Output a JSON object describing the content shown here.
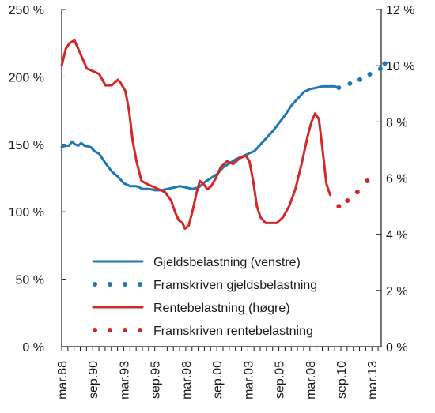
{
  "chart_data": {
    "type": "line",
    "colors": {
      "gjeld": "#1f77b4",
      "rente": "#d62728",
      "axis": "#1a1a1a"
    },
    "x_tick_labels": [
      "mar.88",
      "sep.90",
      "mar.93",
      "sep.95",
      "mar.98",
      "sep.00",
      "mar.03",
      "sep.05",
      "mar.08",
      "sep.10",
      "mar.13"
    ],
    "x_tick_dates": [
      1988.17,
      1990.67,
      1993.17,
      1995.67,
      1998.17,
      2000.67,
      2003.17,
      2005.67,
      2008.17,
      2010.67,
      2013.17
    ],
    "xlim": [
      1988.17,
      2013.92
    ],
    "y_left": {
      "lim": [
        0,
        250
      ],
      "ticks": [
        0,
        50,
        100,
        150,
        200,
        250
      ],
      "tick_labels": [
        "0 %",
        "50 %",
        "100 %",
        "150 %",
        "200 %",
        "250 %"
      ]
    },
    "y_right": {
      "lim": [
        0,
        12
      ],
      "ticks": [
        0,
        2,
        4,
        6,
        8,
        10,
        12
      ],
      "tick_labels": [
        "0 %",
        "2 %",
        "4 %",
        "6 %",
        "8 %",
        "10 %",
        "12 %"
      ]
    },
    "grid": false,
    "legend_position": "bottom-center",
    "series": [
      {
        "name": "Gjeldsbelastning (venstre)",
        "axis": "left",
        "style": "solid",
        "color_key": "gjeld",
        "points": [
          [
            1988.17,
            148
          ],
          [
            1988.5,
            149
          ],
          [
            1988.75,
            149
          ],
          [
            1989.0,
            152
          ],
          [
            1989.25,
            150
          ],
          [
            1989.5,
            149
          ],
          [
            1989.75,
            151
          ],
          [
            1990.0,
            149
          ],
          [
            1990.5,
            148
          ],
          [
            1990.8,
            145
          ],
          [
            1991.2,
            143
          ],
          [
            1991.7,
            136
          ],
          [
            1992.2,
            130
          ],
          [
            1992.7,
            126
          ],
          [
            1993.2,
            121
          ],
          [
            1993.7,
            119
          ],
          [
            1994.2,
            119
          ],
          [
            1994.7,
            117
          ],
          [
            1995.2,
            117
          ],
          [
            1995.7,
            116
          ],
          [
            1996.2,
            116
          ],
          [
            1996.7,
            117
          ],
          [
            1997.2,
            118
          ],
          [
            1997.7,
            119
          ],
          [
            1998.2,
            118
          ],
          [
            1998.7,
            117
          ],
          [
            1999.2,
            118
          ],
          [
            1999.7,
            122
          ],
          [
            2000.2,
            125
          ],
          [
            2000.7,
            128
          ],
          [
            2001.2,
            133
          ],
          [
            2001.7,
            136
          ],
          [
            2002.2,
            139
          ],
          [
            2002.7,
            141
          ],
          [
            2003.2,
            143
          ],
          [
            2003.7,
            145
          ],
          [
            2004.2,
            150
          ],
          [
            2004.7,
            155
          ],
          [
            2005.2,
            160
          ],
          [
            2005.7,
            166
          ],
          [
            2006.2,
            172
          ],
          [
            2006.7,
            179
          ],
          [
            2007.2,
            184
          ],
          [
            2007.7,
            189
          ],
          [
            2008.2,
            191
          ],
          [
            2008.7,
            192
          ],
          [
            2009.2,
            193
          ],
          [
            2009.7,
            193
          ],
          [
            2010.2,
            193
          ],
          [
            2010.5,
            192
          ]
        ]
      },
      {
        "name": "Framskriven gjeldsbelastning",
        "axis": "left",
        "style": "dotted",
        "color_key": "gjeld",
        "points": [
          [
            2010.5,
            192
          ],
          [
            2011.4,
            195
          ],
          [
            2012.2,
            198
          ],
          [
            2013.0,
            202
          ],
          [
            2013.85,
            206
          ],
          [
            2014.2,
            210
          ]
        ]
      },
      {
        "name": "Rentebelastning (høgre)",
        "axis": "right",
        "style": "solid",
        "color_key": "rente",
        "points": [
          [
            1988.17,
            10.0
          ],
          [
            1988.5,
            10.6
          ],
          [
            1988.8,
            10.8
          ],
          [
            1989.2,
            10.9
          ],
          [
            1989.5,
            10.6
          ],
          [
            1989.8,
            10.3
          ],
          [
            1990.2,
            9.9
          ],
          [
            1990.7,
            9.8
          ],
          [
            1991.2,
            9.7
          ],
          [
            1991.7,
            9.3
          ],
          [
            1992.2,
            9.3
          ],
          [
            1992.7,
            9.5
          ],
          [
            1992.9,
            9.4
          ],
          [
            1993.3,
            9.1
          ],
          [
            1993.6,
            8.4
          ],
          [
            1993.9,
            7.3
          ],
          [
            1994.2,
            6.6
          ],
          [
            1994.6,
            5.9
          ],
          [
            1995.0,
            5.8
          ],
          [
            1995.5,
            5.7
          ],
          [
            1996.0,
            5.6
          ],
          [
            1996.5,
            5.5
          ],
          [
            1997.0,
            5.2
          ],
          [
            1997.3,
            4.8
          ],
          [
            1997.6,
            4.5
          ],
          [
            1997.9,
            4.4
          ],
          [
            1998.1,
            4.2
          ],
          [
            1998.4,
            4.3
          ],
          [
            1998.7,
            4.8
          ],
          [
            1999.0,
            5.4
          ],
          [
            1999.3,
            5.9
          ],
          [
            1999.6,
            5.8
          ],
          [
            1999.9,
            5.6
          ],
          [
            2000.2,
            5.7
          ],
          [
            2000.6,
            6.0
          ],
          [
            2001.0,
            6.4
          ],
          [
            2001.5,
            6.6
          ],
          [
            2002.0,
            6.5
          ],
          [
            2002.5,
            6.7
          ],
          [
            2003.0,
            6.8
          ],
          [
            2003.3,
            6.6
          ],
          [
            2003.6,
            5.9
          ],
          [
            2003.9,
            5.0
          ],
          [
            2004.2,
            4.6
          ],
          [
            2004.6,
            4.4
          ],
          [
            2005.0,
            4.4
          ],
          [
            2005.5,
            4.4
          ],
          [
            2006.0,
            4.6
          ],
          [
            2006.5,
            5.0
          ],
          [
            2007.0,
            5.6
          ],
          [
            2007.5,
            6.5
          ],
          [
            2008.0,
            7.5
          ],
          [
            2008.3,
            8.0
          ],
          [
            2008.6,
            8.3
          ],
          [
            2008.9,
            8.1
          ],
          [
            2009.2,
            7.0
          ],
          [
            2009.5,
            5.8
          ],
          [
            2009.8,
            5.4
          ]
        ]
      },
      {
        "name": "Framskriven rentebelastning",
        "axis": "right",
        "style": "dotted",
        "color_key": "rente",
        "points": [
          [
            2010.5,
            5.0
          ],
          [
            2011.2,
            5.2
          ],
          [
            2012.0,
            5.5
          ],
          [
            2012.8,
            5.9
          ]
        ]
      }
    ]
  }
}
